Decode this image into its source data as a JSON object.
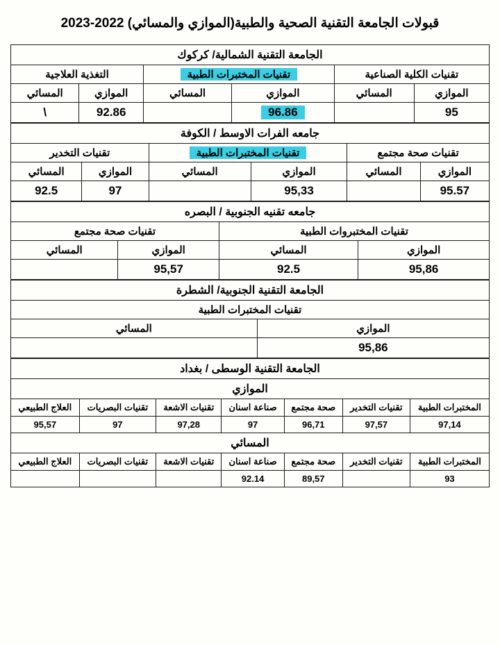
{
  "title": "قبولات الجامعة التقنية الصحية والطبية(الموازي والمسائي) 2022-2023",
  "uni1": {
    "name": "الجامعة التقنية الشمالية/ كركوك",
    "depts": [
      "تقنيات الكلية الصناعية",
      "تقنيات المختبرات الطبية",
      "التغذية العلاجية"
    ],
    "cols": [
      "الموازي",
      "المسائي",
      "الموازي",
      "المسائي",
      "الموازي",
      "المسائي"
    ],
    "vals": [
      "95",
      "",
      "96.86",
      "",
      "92.86",
      "\\"
    ]
  },
  "uni2": {
    "name": "جامعه الفرات الاوسط / الكوفة",
    "depts": [
      "تقنيات صحة مجتمع",
      "تقنيات المختبرات الطبية",
      "تقنيات التخدير"
    ],
    "cols": [
      "الموازي",
      "المسائي",
      "الموازي",
      "المسائي",
      "الموازي",
      "المسائي"
    ],
    "vals": [
      "95.57",
      "",
      "95,33",
      "",
      "97",
      "92.5"
    ]
  },
  "uni3": {
    "name": "جامعه تقنيه الجنوبية / البصره",
    "depts": [
      "تقنيات المختبروات الطبية",
      "تقنيات صحة مجتمع"
    ],
    "cols": [
      "الموازي",
      "المسائي",
      "الموازي",
      "المسائي"
    ],
    "vals": [
      "95,86",
      "92.5",
      "95,57",
      ""
    ]
  },
  "uni4": {
    "name": "الجامعة التقنية الجنوبية/ الشطرة",
    "dept": "تقنيات المختبرات الطبية",
    "cols": [
      "الموازي",
      "المسائي"
    ],
    "vals": [
      "95,86",
      ""
    ]
  },
  "uni5": {
    "name": "الجامعة التقنية الوسطى / بغداد",
    "row1": "الموازي",
    "depts": [
      "المختبرات الطبية",
      "تقنيات التخدير",
      "صحة مجتمع",
      "صناعة اسنان",
      "تقنيات الاشعة",
      "تقنيات البصريات",
      "العلاج الطبيعي"
    ],
    "vals1": [
      "97,14",
      "97,57",
      "96,71",
      "97",
      "97,28",
      "97",
      "95,57"
    ],
    "row2": "المسائي",
    "vals2": [
      "93",
      "",
      "89,57",
      "92.14",
      "",
      "",
      ""
    ]
  },
  "highlight_color": "#3acde3"
}
